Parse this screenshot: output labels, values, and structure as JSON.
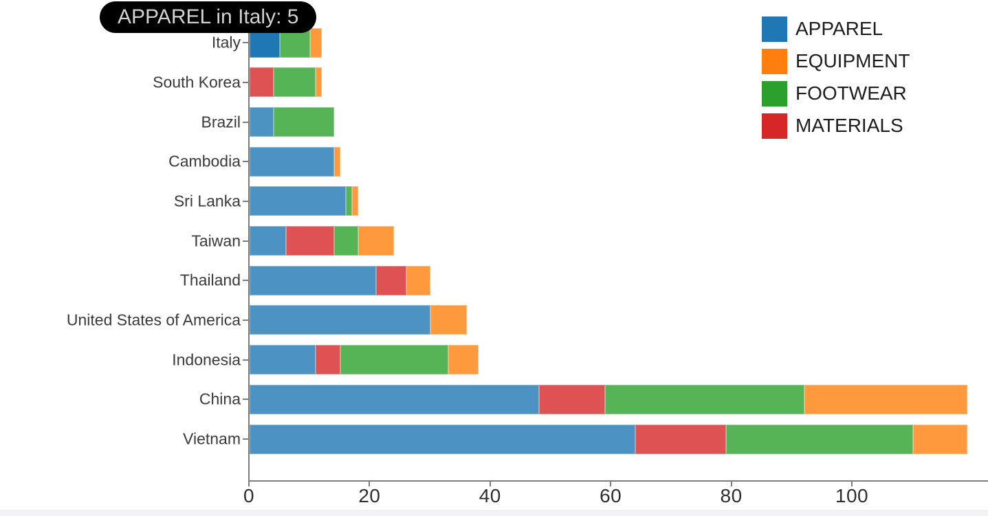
{
  "tooltip": {
    "text": "APPAREL in Italy: 5"
  },
  "legend": {
    "position": "top-right",
    "items": [
      {
        "label": "APPAREL",
        "color": "#1f77b4"
      },
      {
        "label": "EQUIPMENT",
        "color": "#ff7f0e"
      },
      {
        "label": "FOOTWEAR",
        "color": "#2ca02c"
      },
      {
        "label": "MATERIALS",
        "color": "#d62728"
      }
    ]
  },
  "chart_data": {
    "type": "bar",
    "orientation": "horizontal",
    "stacked": true,
    "title": "",
    "xlabel": "",
    "ylabel": "",
    "categories": [
      "Italy",
      "South Korea",
      "Brazil",
      "Cambodia",
      "Sri Lanka",
      "Taiwan",
      "Thailand",
      "United States of America",
      "Indonesia",
      "China",
      "Vietnam"
    ],
    "series": [
      {
        "name": "APPAREL",
        "color": "#1f77b4",
        "values": [
          5,
          0,
          4,
          14,
          16,
          6,
          21,
          30,
          11,
          48,
          64
        ]
      },
      {
        "name": "MATERIALS",
        "color": "#d62728",
        "values": [
          0,
          4,
          0,
          0,
          0,
          8,
          5,
          0,
          4,
          11,
          15
        ]
      },
      {
        "name": "FOOTWEAR",
        "color": "#2ca02c",
        "values": [
          5,
          7,
          10,
          0,
          1,
          4,
          0,
          0,
          18,
          33,
          31
        ]
      },
      {
        "name": "EQUIPMENT",
        "color": "#ff7f0e",
        "values": [
          2,
          1,
          0,
          1,
          1,
          6,
          4,
          6,
          5,
          27,
          9
        ]
      }
    ],
    "totals": [
      12,
      12,
      14,
      15,
      18,
      24,
      30,
      36,
      38,
      119,
      119
    ],
    "stack_order": [
      "APPAREL",
      "MATERIALS",
      "FOOTWEAR",
      "EQUIPMENT"
    ],
    "x_ticks": [
      0,
      20,
      40,
      60,
      80,
      100
    ],
    "xlim": [
      0,
      119
    ],
    "grid": false,
    "highlight": {
      "category": "APPAREL",
      "country": "Italy"
    },
    "dim_opacity": 0.8
  }
}
